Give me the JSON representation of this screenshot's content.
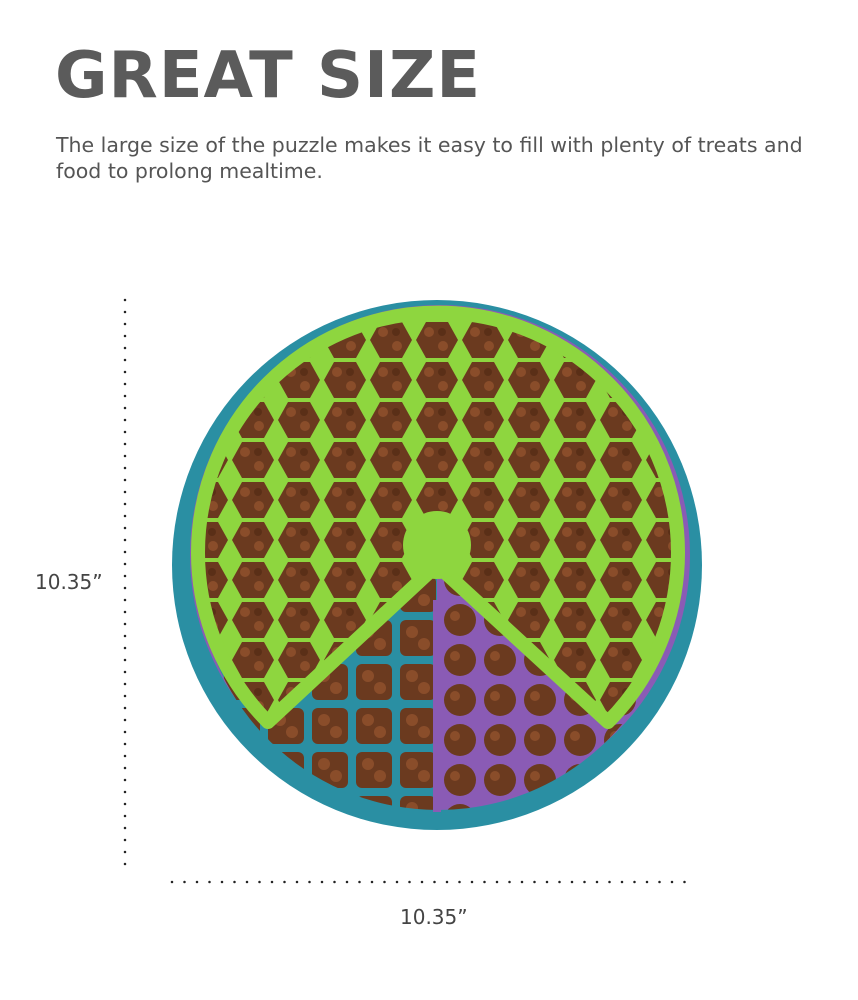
{
  "heading": "GREAT SIZE",
  "description": "The large size of the puzzle makes it easy to fill with plenty of treats and food to prolong mealtime.",
  "dimensions": {
    "height_label": "10.35”",
    "width_label": "10.35”"
  },
  "colors": {
    "teal": "#2a8fa3",
    "purple": "#8a5bb5",
    "green": "#8ed63f",
    "kibble": "#6b3a1f",
    "text": "#5b5b5b"
  }
}
